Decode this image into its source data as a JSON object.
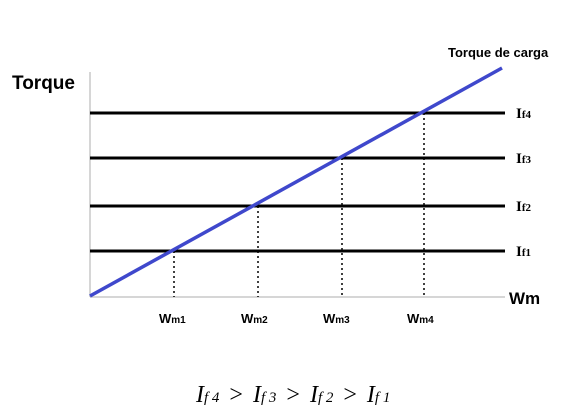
{
  "diagram": {
    "y_axis_label": "Torque",
    "x_axis_label": "Wm",
    "load_line_label": "Torque de carga",
    "load_line_color": "#3f48cc",
    "field_lines": [
      {
        "label_main": "I",
        "label_sub": "f4"
      },
      {
        "label_main": "I",
        "label_sub": "f3"
      },
      {
        "label_main": "I",
        "label_sub": "f2"
      },
      {
        "label_main": "I",
        "label_sub": "f1"
      }
    ],
    "speed_ticks": [
      {
        "label_main": "W",
        "label_sub": "m1"
      },
      {
        "label_main": "W",
        "label_sub": "m2"
      },
      {
        "label_main": "W",
        "label_sub": "m3"
      },
      {
        "label_main": "W",
        "label_sub": "m4"
      }
    ],
    "inequality": {
      "terms": [
        {
          "main": "I",
          "sub": "f 4"
        },
        {
          "main": "I",
          "sub": "f 3"
        },
        {
          "main": "I",
          "sub": "f 2"
        },
        {
          "main": "I",
          "sub": "f 1"
        }
      ],
      "operator": ">"
    }
  }
}
